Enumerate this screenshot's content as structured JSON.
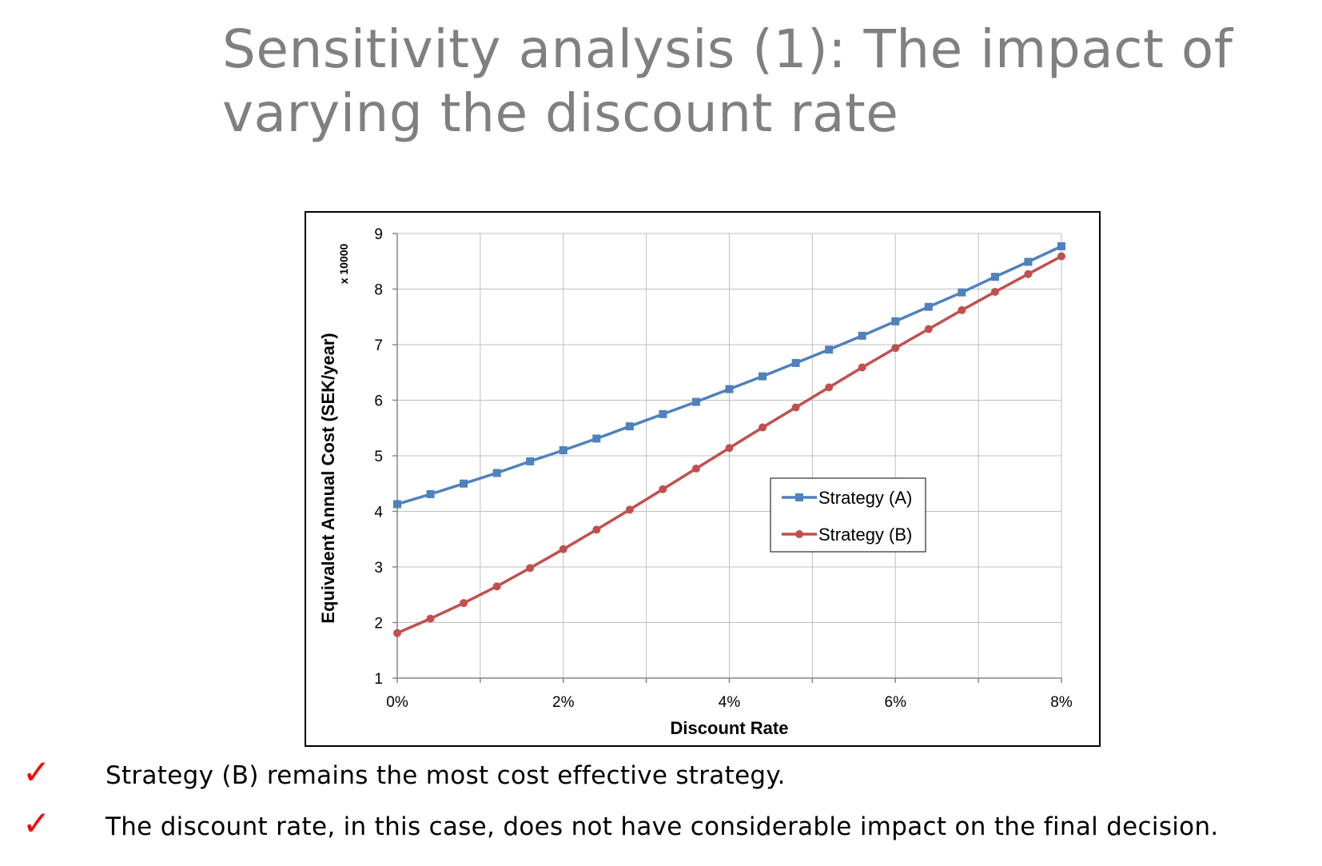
{
  "title_lines": [
    "Sensitivity analysis (1): The impact of",
    "varying the discount rate"
  ],
  "chart_data": {
    "type": "line",
    "title": "",
    "xlabel": "Discount Rate",
    "ylabel": "Equivalent Annual Cost (SEK/year)",
    "y_multiplier_label": "x 10000",
    "x": [
      0,
      0.4,
      0.8,
      1.2,
      1.6,
      2.0,
      2.4,
      2.8,
      3.2,
      3.6,
      4.0,
      4.4,
      4.8,
      5.2,
      5.6,
      6.0,
      6.4,
      6.8,
      7.2,
      7.6,
      8.0
    ],
    "xlim": [
      0,
      8
    ],
    "ylim": [
      1,
      9
    ],
    "x_ticks": [
      0,
      2,
      4,
      6,
      8
    ],
    "x_tick_labels": [
      "0%",
      "2%",
      "4%",
      "6%",
      "8%"
    ],
    "x_gridlines": [
      0,
      1,
      2,
      3,
      4,
      5,
      6,
      7,
      8
    ],
    "y_ticks": [
      1,
      2,
      3,
      4,
      5,
      6,
      7,
      8,
      9
    ],
    "y_tick_labels": [
      "1",
      "2",
      "3",
      "4",
      "5",
      "6",
      "7",
      "8",
      "9"
    ],
    "grid": true,
    "legend": "center-right",
    "series": [
      {
        "name": "Strategy (A)",
        "color": "#4f81bd",
        "marker": "square",
        "values": [
          4.13,
          4.31,
          4.5,
          4.69,
          4.9,
          5.1,
          5.31,
          5.53,
          5.75,
          5.97,
          6.2,
          6.43,
          6.67,
          6.91,
          7.16,
          7.42,
          7.68,
          7.94,
          8.22,
          8.49,
          8.77
        ]
      },
      {
        "name": "Strategy (B)",
        "color": "#c0504d",
        "marker": "circle",
        "values": [
          1.81,
          2.07,
          2.35,
          2.65,
          2.98,
          3.32,
          3.67,
          4.03,
          4.4,
          4.77,
          5.14,
          5.51,
          5.87,
          6.23,
          6.59,
          6.94,
          7.28,
          7.62,
          7.95,
          8.27,
          8.59
        ]
      }
    ]
  },
  "bullets": [
    {
      "icon": "check-icon",
      "text": "Strategy (B) remains the most cost effective strategy."
    },
    {
      "icon": "check-icon",
      "text": "The discount rate, in this case, does not have considerable impact on the final decision."
    }
  ],
  "check_glyph": "✓"
}
